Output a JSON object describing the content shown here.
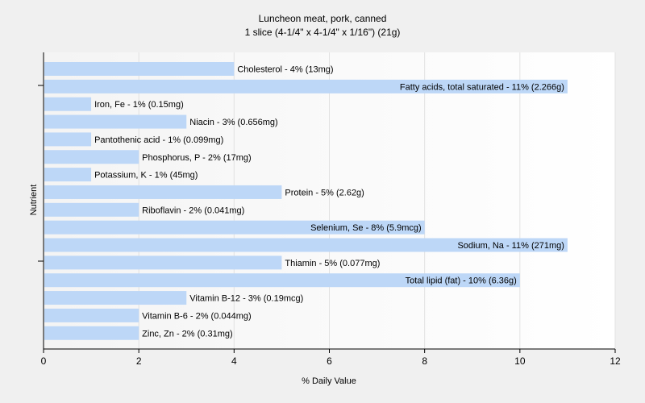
{
  "chart_data": {
    "type": "bar",
    "orientation": "horizontal",
    "title": "Luncheon meat, pork, canned",
    "subtitle": "1 slice (4-1/4\" x 4-1/4\" x 1/16\") (21g)",
    "xlabel": "% Daily Value",
    "ylabel": "Nutrient",
    "xlim": [
      0,
      12
    ],
    "xticks": [
      0,
      2,
      4,
      6,
      8,
      10,
      12
    ],
    "grid": true,
    "bar_color": "#bdd7f7",
    "categories": [
      "Cholesterol",
      "Fatty acids, total saturated",
      "Iron, Fe",
      "Niacin",
      "Pantothenic acid",
      "Phosphorus, P",
      "Potassium, K",
      "Protein",
      "Riboflavin",
      "Selenium, Se",
      "Sodium, Na",
      "Thiamin",
      "Total lipid (fat)",
      "Vitamin B-12",
      "Vitamin B-6",
      "Zinc, Zn"
    ],
    "values": [
      4,
      11,
      1,
      3,
      1,
      2,
      1,
      5,
      2,
      8,
      11,
      5,
      10,
      3,
      2,
      2
    ],
    "labels": [
      "Cholesterol - 4% (13mg)",
      "Fatty acids, total saturated - 11% (2.266g)",
      "Iron, Fe - 1% (0.15mg)",
      "Niacin - 3% (0.656mg)",
      "Pantothenic acid - 1% (0.099mg)",
      "Phosphorus, P - 2% (17mg)",
      "Potassium, K - 1% (45mg)",
      "Protein - 5% (2.62g)",
      "Riboflavin - 2% (0.041mg)",
      "Selenium, Se - 8% (5.9mcg)",
      "Sodium, Na - 11% (271mg)",
      "Thiamin - 5% (0.077mg)",
      "Total lipid (fat) - 10% (6.36g)",
      "Vitamin B-12 - 3% (0.19mcg)",
      "Vitamin B-6 - 2% (0.044mg)",
      "Zinc, Zn - 2% (0.31mg)"
    ]
  }
}
